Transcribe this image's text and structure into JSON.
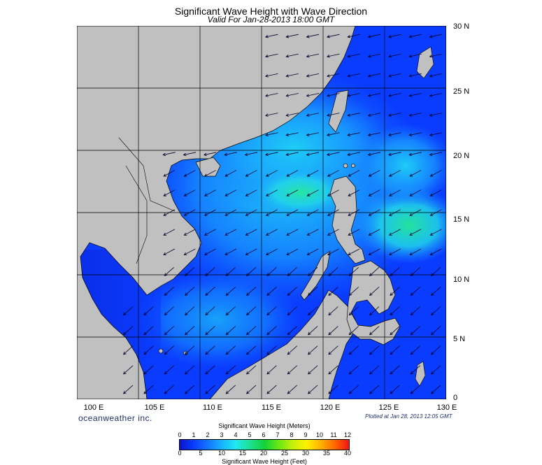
{
  "header": {
    "title": "Significant Wave Height with Wave Direction",
    "subtitle": "Valid For Jan-28-2013 18:00 GMT"
  },
  "map": {
    "region": "South China Sea",
    "lon_range": [
      100,
      130
    ],
    "lat_range": [
      0,
      30
    ],
    "lat_labels": [
      "30 N",
      "25 N",
      "20 N",
      "15 N",
      "10 N",
      "5 N",
      "0"
    ],
    "lon_labels": [
      "100 E",
      "105 E",
      "110 E",
      "115 E",
      "120 E",
      "125 E",
      "130 E"
    ],
    "land_color": "#c0c0c0",
    "wave_direction": "northeast (arrows point southwest)"
  },
  "footer": {
    "brand": "oceanweather inc.",
    "plotted": "Plotted at Jan 28, 2013 12:05 GMT"
  },
  "legend": {
    "meters_title": "Significant Wave Height (Meters)",
    "meters_ticks": [
      "0",
      "1",
      "2",
      "3",
      "4",
      "5",
      "6",
      "7",
      "8",
      "9",
      "10",
      "11",
      "12"
    ],
    "feet_title": "Significant Wave Height (Feet)",
    "feet_ticks": [
      "0",
      "5",
      "10",
      "15",
      "20",
      "25",
      "30",
      "35",
      "40"
    ],
    "colors": [
      "#0a14c8",
      "#0a3cff",
      "#1478ff",
      "#18b4ff",
      "#20e8f0",
      "#1ee08c",
      "#14d03c",
      "#64e614",
      "#c8f00a",
      "#fff000",
      "#ffb400",
      "#ff6400",
      "#f01414"
    ]
  }
}
